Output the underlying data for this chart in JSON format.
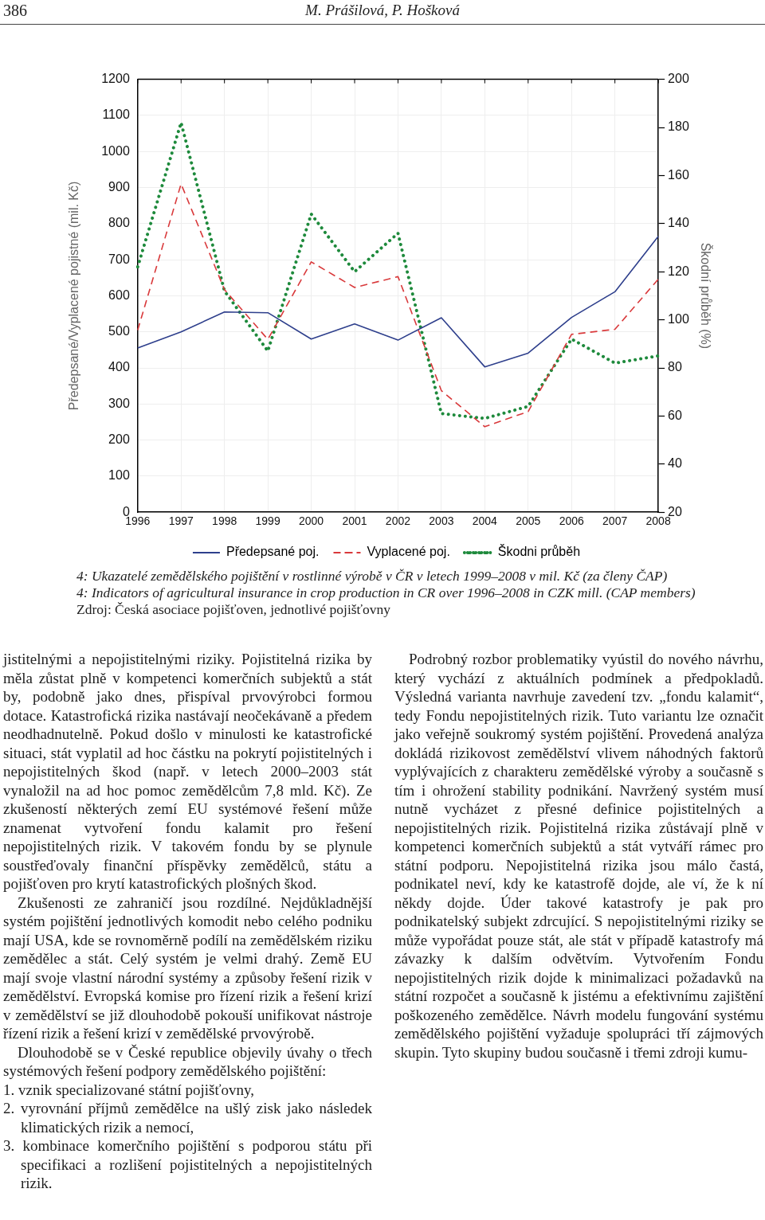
{
  "chart_data": {
    "type": "line",
    "ylabel": "Předepsané/Vyplacené pojistné (mil. Kč)",
    "y2label": "Škodní průběh (%)",
    "categories": [
      "1996",
      "1997",
      "1998",
      "1999",
      "2000",
      "2001",
      "2002",
      "2003",
      "2004",
      "2005",
      "2006",
      "2007",
      "2008"
    ],
    "series": [
      {
        "name": "Předepsané poj.",
        "color": "#2e3f8c",
        "line_style": "solid",
        "values": [
          455,
          500,
          555,
          553,
          480,
          522,
          477,
          539,
          403,
          441,
          540,
          611,
          765
        ]
      },
      {
        "name": "Vyplacené poj.",
        "color": "#d9393b",
        "line_style": "dashed",
        "values": [
          505,
          910,
          617,
          479,
          694,
          623,
          653,
          337,
          237,
          279,
          493,
          507,
          646
        ]
      },
      {
        "name": "Škodni průběh",
        "color": "#1e8a3c",
        "line_style": "dotted",
        "axis": "y2",
        "values": [
          122,
          182,
          112,
          87,
          144,
          120,
          136,
          61,
          59,
          64,
          92,
          82,
          85
        ]
      }
    ],
    "ylim": [
      0,
      1200
    ],
    "yticks": [
      0,
      100,
      200,
      300,
      400,
      500,
      600,
      700,
      800,
      900,
      1000,
      1100,
      1200
    ],
    "y2lim": [
      20,
      200
    ],
    "y2ticks": [
      20,
      40,
      60,
      80,
      100,
      120,
      140,
      160,
      180,
      200
    ],
    "grid": true,
    "legend": "bottom",
    "marker": "none",
    "annotations": [
      "386",
      "M. Prášilová, P. Hošková",
      "4:  Ukazatelé zemědělského pojištění v rostlinné výrobě v ČR v letech 1999–2008 v mil. Kč (za členy ČAP)",
      "4:  Indicators of agricultural insurance in crop production in CR over 1996–2008 in CZK mill. (CAP members)",
      "Zdroj: Česká asociace pojišťoven, jednotlivé pojišťovny",
      "jistitelnými a nepojistitelnými riziky. Pojistitelná rizika by měla zůstat plně v kompetenci komerčních subjektů a stát by, podobně jako dnes, přispíval prvovýrobci formou dotace. Katastrofická rizika nastávají neočekávaně a předem neodhadnutelně. Pokud došlo v minulosti ke katastrofické situaci, stát vyplatil ad hoc částku na pokrytí pojistitelných i nepojistitelných škod (např. v letech 2000–2003 stát vynaložil na ad hoc pomoc zemědělcům 7,8 mld. Kč). Ze zkušeností některých zemí EU systémové řešení může znamenat vytvoření fondu kalamit pro řešení nepojistitelných rizik. V takovém fondu by se plynule soustřeďovaly finanční příspěvky zemědělců, státu a pojišťoven pro krytí katastrofických plošných škod.",
      "Zkušenosti ze zahraničí jsou rozdílné. Nejdůkladnější systém pojištění jednotlivých komodit nebo celého podniku mají USA, kde se rovnoměrně podílí na zemědělském riziku zemědělec a stát. Celý systém je velmi drahý. Země EU mají svoje vlastní národní systémy a způsoby řešení rizik v zemědělství. Evropská komise pro řízení rizik a řešení krizí v zemědělství se již dlouhodobě pokouší unifikovat nástroje řízení rizik a řešení krizí v zemědělské prvovýrobě.",
      "Dlouhodobě se v České republice objevily úvahy o třech systémových řešení podpory zemědělského pojištění:",
      "1.  vznik specializované státní pojišťovny,",
      "2.  vyrovnání příjmů zemědělce na ušlý zisk jako následek klimatických rizik a nemocí,",
      "3.  kombinace komerčního pojištění s podporou státu při specifikaci a rozlišení pojistitelných a nepojistitelných rizik.",
      "Podrobný rozbor problematiky vyústil do nového návrhu, který vychází z aktuálních podmínek a předpokladů. Výsledná varianta navrhuje zavedení tzv. „fondu kalamit“, tedy Fondu nepojistitelných rizik. Tuto variantu lze označit jako veřejně soukromý systém pojištění. Provedená analýza dokládá rizikovost zemědělství vlivem náhodných faktorů vyplývajících z charakteru zemědělské výroby a současně s tím i ohrožení stability podnikání. Navržený systém musí nutně vycházet z přesné definice pojistitelných a nepojistitelných rizik. Pojistitelná rizika zůstávají plně v kompetenci komerčních subjektů a stát vytváří rámec pro státní podporu. Nepojistitelná rizika jsou málo častá, podnikatel neví, kdy ke katastrofě dojde, ale ví, že k ní někdy dojde. Úder takové katastrofy je pak pro podnikatelský subjekt zdrcující. S nepojistitelnými riziky se může vypořádat pouze stát, ale stát v případě katastrofy má závazky k dalším odvětvím. Vytvořením Fondu nepojistitelných rizik dojde k minimalizaci požadavků na státní rozpočet a současně k jistému a efektivnímu zajištění poškozeného zemědělce. Návrh modelu fungování systému zemědělského pojištění vyžaduje spolupráci tří zájmových skupin. Tyto skupiny budou současně i třemi zdroji kumu-"
    ]
  }
}
